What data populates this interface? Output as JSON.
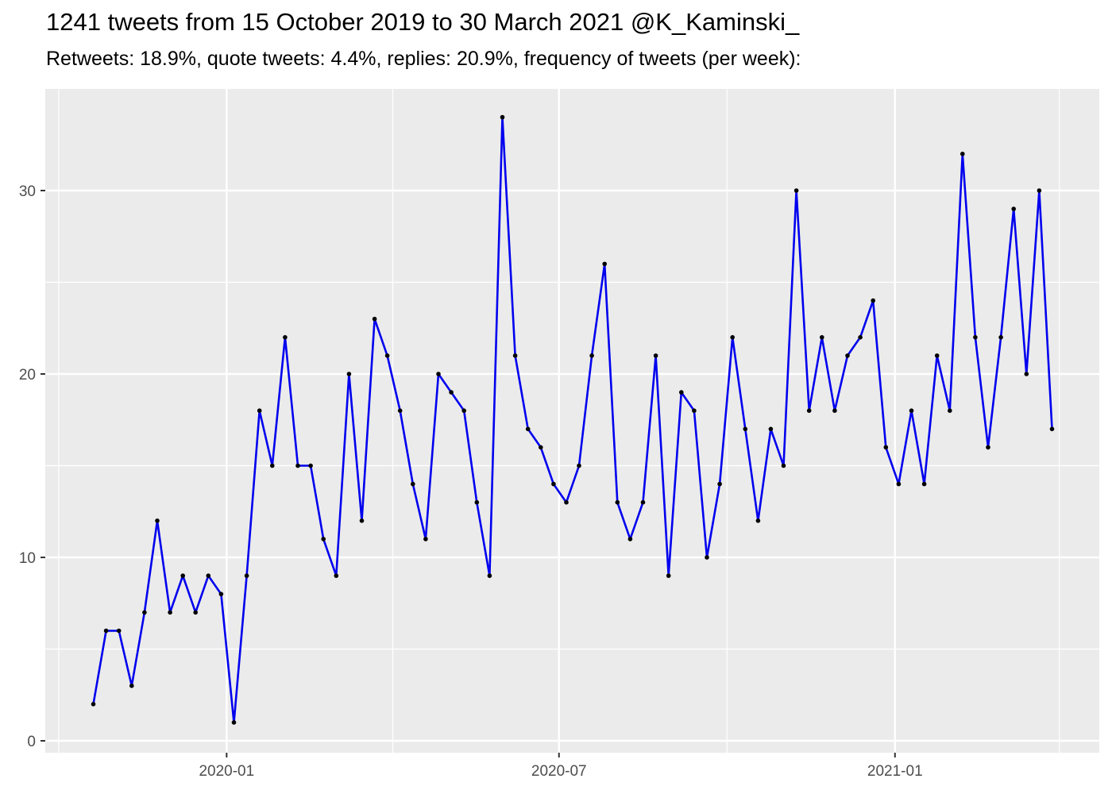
{
  "chart_data": {
    "type": "line",
    "title": "1241 tweets from 15 October 2019 to 30 March 2021 @K_Kaminski_",
    "subtitle": "Retweets: 18.9%, quote tweets: 4.4%, replies: 20.9%, frequency of tweets (per week):",
    "xlabel": "",
    "ylabel": "",
    "x_tick_labels": [
      "2020-01",
      "2020-07",
      "2021-01"
    ],
    "y_tick_labels": [
      "0",
      "10",
      "20",
      "30"
    ],
    "ylim": [
      -1,
      34.9
    ],
    "grid": true,
    "legend": "none",
    "line_color": "#0000ee",
    "point_color": "#000000",
    "panel_background": "#ebebeb",
    "series": [
      {
        "x": [
          "2019-10-20",
          "2019-10-27",
          "2019-11-03",
          "2019-11-10",
          "2019-11-17",
          "2019-11-24",
          "2019-12-01",
          "2019-12-08",
          "2019-12-15",
          "2019-12-22",
          "2019-12-29",
          "2020-01-05",
          "2020-01-12",
          "2020-01-19",
          "2020-01-26",
          "2020-02-02",
          "2020-02-09",
          "2020-02-16",
          "2020-02-23",
          "2020-03-01",
          "2020-03-08",
          "2020-03-15",
          "2020-03-22",
          "2020-03-29",
          "2020-04-05",
          "2020-04-12",
          "2020-04-19",
          "2020-04-26",
          "2020-05-03",
          "2020-05-10",
          "2020-05-17",
          "2020-05-24",
          "2020-05-31",
          "2020-06-07",
          "2020-06-14",
          "2020-06-21",
          "2020-06-28",
          "2020-07-05",
          "2020-07-12",
          "2020-07-19",
          "2020-07-26",
          "2020-08-02",
          "2020-08-09",
          "2020-08-16",
          "2020-08-23",
          "2020-08-30",
          "2020-09-06",
          "2020-09-13",
          "2020-09-20",
          "2020-09-27",
          "2020-10-04",
          "2020-10-11",
          "2020-10-18",
          "2020-10-25",
          "2020-11-01",
          "2020-11-08",
          "2020-11-15",
          "2020-11-22",
          "2020-11-29",
          "2020-12-06",
          "2020-12-13",
          "2020-12-20",
          "2020-12-27",
          "2021-01-03",
          "2021-01-10",
          "2021-01-17",
          "2021-01-24",
          "2021-01-31",
          "2021-02-07",
          "2021-02-14",
          "2021-02-21",
          "2021-02-28",
          "2021-03-07",
          "2021-03-14",
          "2021-03-21",
          "2021-03-28"
        ],
        "values": [
          2,
          6,
          6,
          3,
          7,
          12,
          7,
          9,
          7,
          9,
          8,
          1,
          9,
          18,
          15,
          22,
          15,
          15,
          11,
          9,
          20,
          12,
          23,
          21,
          18,
          14,
          11,
          20,
          19,
          18,
          13,
          9,
          34,
          21,
          17,
          16,
          14,
          13,
          15,
          21,
          26,
          13,
          11,
          13,
          21,
          9,
          19,
          18,
          10,
          14,
          22,
          17,
          12,
          17,
          15,
          30,
          18,
          22,
          18,
          21,
          22,
          24,
          16,
          14,
          18,
          14,
          21,
          18,
          32,
          22,
          16,
          22,
          29,
          20,
          30,
          17
        ]
      }
    ]
  }
}
